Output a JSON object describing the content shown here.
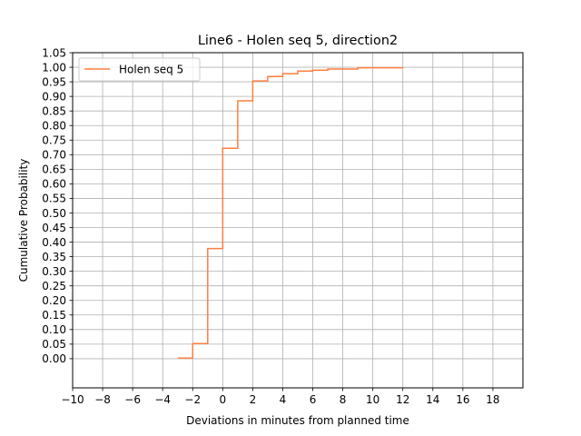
{
  "chart_data": {
    "type": "line",
    "title": "Line6 - Holen seq 5, direction2",
    "xlabel": "Deviations in minutes from planned time",
    "ylabel": "Cumulative Probability",
    "xlim": [
      -10,
      20
    ],
    "ylim": [
      -0.1,
      1.05
    ],
    "xticks": [
      -10,
      -8,
      -6,
      -4,
      -2,
      0,
      2,
      4,
      6,
      8,
      10,
      12,
      14,
      16,
      18
    ],
    "xtick_labels": [
      "−10",
      "−8",
      "−6",
      "−4",
      "−2",
      "0",
      "2",
      "4",
      "6",
      "8",
      "10",
      "12",
      "14",
      "16",
      "18"
    ],
    "yticks": [
      0.0,
      0.05,
      0.1,
      0.15,
      0.2,
      0.25,
      0.3,
      0.35,
      0.4,
      0.45,
      0.5,
      0.55,
      0.6,
      0.65,
      0.7,
      0.75,
      0.8,
      0.85,
      0.9,
      0.95,
      1.0,
      1.05
    ],
    "ytick_labels": [
      "0.00",
      "0.05",
      "0.10",
      "0.15",
      "0.20",
      "0.25",
      "0.30",
      "0.35",
      "0.40",
      "0.45",
      "0.50",
      "0.55",
      "0.60",
      "0.65",
      "0.70",
      "0.75",
      "0.80",
      "0.85",
      "0.90",
      "0.95",
      "1.00",
      "1.05"
    ],
    "grid": true,
    "legend": "upper-left",
    "step": "post",
    "series": [
      {
        "name": "Holen seq 5",
        "color": "#ff7f3f",
        "x": [
          -3,
          -2,
          -1,
          0,
          1,
          2,
          3,
          4,
          5,
          6,
          7,
          9,
          12
        ],
        "y": [
          0.002,
          0.052,
          0.378,
          0.722,
          0.885,
          0.953,
          0.968,
          0.978,
          0.987,
          0.99,
          0.994,
          0.998,
          1.0
        ]
      }
    ]
  }
}
